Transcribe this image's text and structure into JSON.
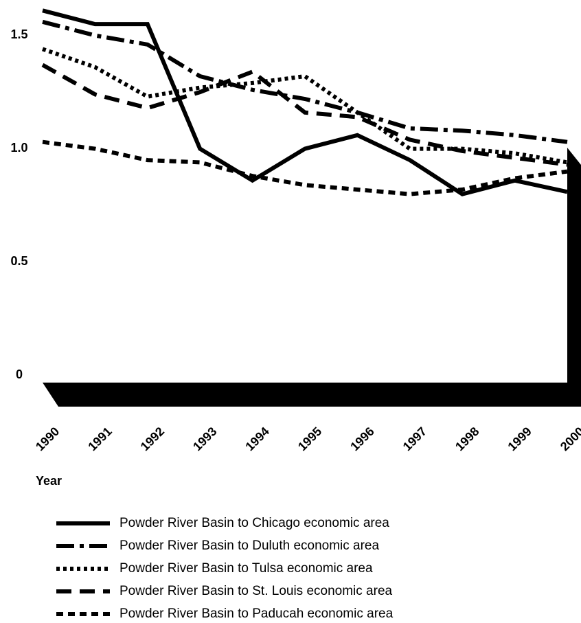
{
  "chart_data": {
    "type": "line",
    "x_label": "Year",
    "categories": [
      "1990",
      "1991",
      "1992",
      "1993",
      "1994",
      "1995",
      "1996",
      "1997",
      "1998",
      "1999",
      "2000"
    ],
    "ylim": [
      0,
      1.6
    ],
    "yticks": [
      0,
      0.5,
      {
        "value": 1,
        "label": "1.0"
      },
      1.5
    ],
    "series": [
      {
        "name": "Powder River Basin to Chicago economic area",
        "color": "#000000",
        "line_style": "solid",
        "values": [
          1.59,
          1.53,
          1.53,
          0.98,
          0.84,
          0.98,
          1.04,
          0.93,
          0.78,
          0.84,
          0.79
        ]
      },
      {
        "name": "Powder River Basin to Duluth economic area",
        "color": "#000000",
        "line_style": "dashdot",
        "values": [
          1.54,
          1.48,
          1.44,
          1.3,
          1.24,
          1.2,
          1.14,
          1.07,
          1.06,
          1.04,
          1.01
        ]
      },
      {
        "name": "Powder River Basin to Tulsa economic area",
        "color": "#000000",
        "line_style": "dotted",
        "values": [
          1.42,
          1.34,
          1.21,
          1.25,
          1.27,
          1.3,
          1.14,
          0.98,
          0.98,
          0.96,
          0.92
        ]
      },
      {
        "name": "Powder River Basin to St. Louis economic area",
        "color": "#000000",
        "line_style": "longdash",
        "values": [
          1.35,
          1.22,
          1.16,
          1.23,
          1.32,
          1.14,
          1.12,
          1.02,
          0.97,
          0.94,
          0.91
        ]
      },
      {
        "name": "Powder River Basin to Paducah economic area",
        "color": "#000000",
        "line_style": "dash",
        "values": [
          1.01,
          0.98,
          0.93,
          0.92,
          0.86,
          0.82,
          0.8,
          0.78,
          0.8,
          0.85,
          0.88
        ]
      }
    ]
  }
}
